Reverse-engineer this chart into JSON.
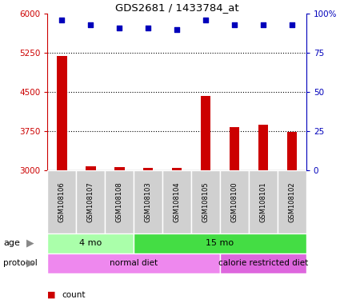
{
  "title": "GDS2681 / 1433784_at",
  "samples": [
    "GSM108106",
    "GSM108107",
    "GSM108108",
    "GSM108103",
    "GSM108104",
    "GSM108105",
    "GSM108100",
    "GSM108101",
    "GSM108102"
  ],
  "counts": [
    5200,
    3080,
    3070,
    3055,
    3050,
    4430,
    3830,
    3870,
    3730
  ],
  "percentile_ranks": [
    96,
    93,
    91,
    91,
    90,
    96,
    93,
    93,
    93
  ],
  "ylim_left": [
    3000,
    6000
  ],
  "ylim_right": [
    0,
    100
  ],
  "yticks_left": [
    3000,
    3750,
    4500,
    5250,
    6000
  ],
  "yticks_right": [
    0,
    25,
    50,
    75,
    100
  ],
  "ytick_labels_left": [
    "3000",
    "3750",
    "4500",
    "5250",
    "6000"
  ],
  "ytick_labels_right": [
    "0",
    "25",
    "50",
    "75",
    "100%"
  ],
  "age_groups": [
    {
      "label": "4 mo",
      "start": 0,
      "end": 3,
      "color": "#aaffaa"
    },
    {
      "label": "15 mo",
      "start": 3,
      "end": 9,
      "color": "#44dd44"
    }
  ],
  "protocol_groups": [
    {
      "label": "normal diet",
      "start": 0,
      "end": 6,
      "color": "#ee88ee"
    },
    {
      "label": "calorie restricted diet",
      "start": 6,
      "end": 9,
      "color": "#dd66dd"
    }
  ],
  "bar_color": "#cc0000",
  "dot_color": "#0000bb",
  "grid_color": "#000000",
  "axis_color_left": "#cc0000",
  "axis_color_right": "#0000bb",
  "background_color": "#ffffff",
  "sample_bg_color": "#d0d0d0",
  "legend_count_color": "#cc0000",
  "legend_dot_color": "#0000bb",
  "bar_width": 0.35
}
